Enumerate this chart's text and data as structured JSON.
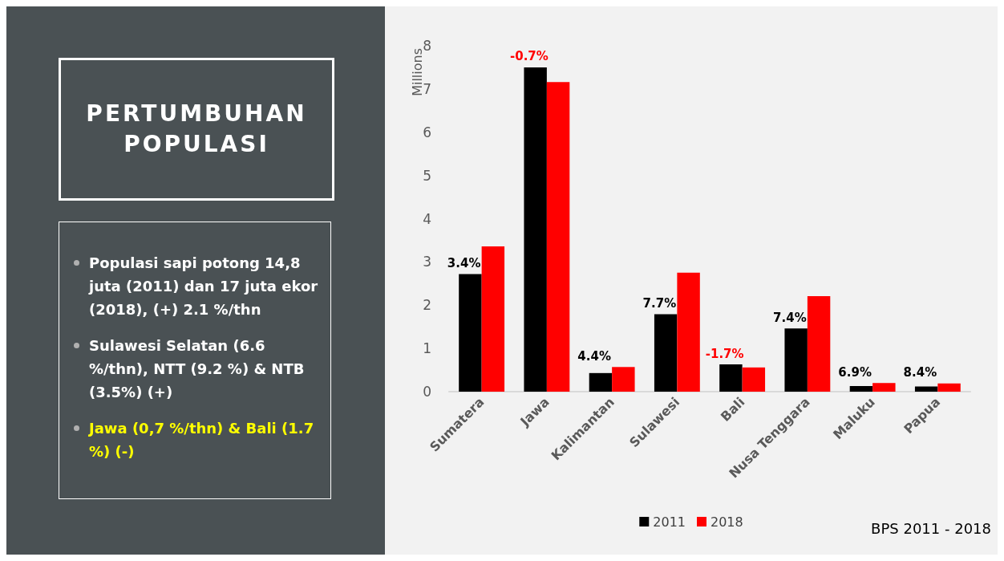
{
  "chart_data": {
    "type": "bar",
    "title": "PERTUMBUHAN POPULASI",
    "categories": [
      "Sumatera",
      "Jawa",
      "Kalimantan",
      "Sulawesi",
      "Bali",
      "Nusa Tenggara",
      "Maluku",
      "Papua"
    ],
    "series": [
      {
        "name": "2011",
        "color": "#000000",
        "values": [
          2.72,
          7.5,
          0.43,
          1.79,
          0.63,
          1.46,
          0.13,
          0.12
        ]
      },
      {
        "name": "2018",
        "color": "#ff0000",
        "values": [
          3.36,
          7.16,
          0.57,
          2.75,
          0.56,
          2.21,
          0.2,
          0.19
        ]
      }
    ],
    "ylabel": "Millions",
    "ylim": [
      0,
      8
    ],
    "yticks": [
      0,
      1,
      2,
      3,
      4,
      5,
      6,
      7,
      8
    ],
    "grid": false,
    "legend": "bottom",
    "annotations": [
      {
        "text": "3.4%",
        "x": "Sumatera",
        "y": 2.72
      },
      {
        "text": "-0.7%",
        "x": "Jawa",
        "y": 7.5
      },
      {
        "text": "4.4%",
        "x": "Kalimantan",
        "y": 0.57
      },
      {
        "text": "7.7%",
        "x": "Sulawesi",
        "y": 1.79
      },
      {
        "text": "-1.7%",
        "x": "Bali",
        "y": 0.63
      },
      {
        "text": "7.4%",
        "x": "Nusa Tenggara",
        "y": 1.46
      },
      {
        "text": "6.9%",
        "x": "Maluku",
        "y": 0.2
      },
      {
        "text": "8.4%",
        "x": "Papua",
        "y": 0.19
      },
      "Populasi sapi potong 14,8 juta (2011) dan 17 juta ekor (2018), (+) 2.1 %/thn",
      "Sulawesi Selatan (6.6 %/thn), NTT (9.2 %) & NTB (3.5%) (+)",
      "Jawa (0,7 %/thn) & Bali (1.7 %) (-)",
      "BPS 2011 - 2018"
    ]
  }
}
